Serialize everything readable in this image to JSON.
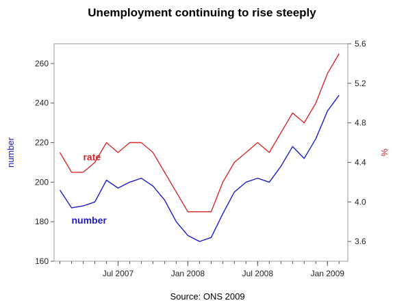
{
  "chart_data": {
    "type": "line",
    "title": "Unemployment continuing to rise steeply",
    "source": "Source: ONS 2009",
    "x": [
      "2007-02",
      "2007-03",
      "2007-04",
      "2007-05",
      "2007-06",
      "2007-07",
      "2007-08",
      "2007-09",
      "2007-10",
      "2007-11",
      "2007-12",
      "2008-01",
      "2008-02",
      "2008-03",
      "2008-04",
      "2008-05",
      "2008-06",
      "2008-07",
      "2008-08",
      "2008-09",
      "2008-10",
      "2008-11",
      "2008-12",
      "2009-01",
      "2009-02",
      "2009-03"
    ],
    "x_ticks": [
      {
        "label": "Jul 2007",
        "at": "2007-07"
      },
      {
        "label": "Jan 2008",
        "at": "2008-01"
      },
      {
        "label": "Jul 2008",
        "at": "2008-07"
      },
      {
        "label": "Jan 2009",
        "at": "2009-01"
      }
    ],
    "x_range": [
      "2007-02",
      "2009-03"
    ],
    "y_left": {
      "label": "number",
      "range": [
        160,
        270
      ],
      "ticks": [
        "160",
        "180",
        "200",
        "220",
        "240",
        "260"
      ],
      "color": "#1a1acc"
    },
    "y_right": {
      "label": "%",
      "range": [
        3.4,
        5.6
      ],
      "ticks": [
        "3.6",
        "4.0",
        "4.4",
        "4.8",
        "5.2",
        "5.6"
      ],
      "color": "#cc2222"
    },
    "series": [
      {
        "name": "number",
        "axis": "left",
        "color": "#1a1acc",
        "values": [
          196,
          187,
          188,
          190,
          201,
          197,
          200,
          202,
          198,
          191,
          180,
          173,
          170,
          172,
          184,
          195,
          200,
          202,
          200,
          208,
          218,
          212,
          222,
          236,
          244,
          null
        ],
        "label_at": {
          "x": "2007-03",
          "y": 179
        }
      },
      {
        "name": "rate",
        "axis": "right",
        "color": "#d42828",
        "values": [
          4.5,
          4.3,
          4.3,
          4.4,
          4.6,
          4.5,
          4.6,
          4.6,
          4.5,
          4.3,
          4.1,
          3.9,
          3.9,
          3.9,
          4.2,
          4.4,
          4.5,
          4.6,
          4.5,
          4.7,
          4.9,
          4.8,
          5.0,
          5.3,
          5.5,
          null
        ],
        "label_at": {
          "x": "2007-04",
          "y": 4.42
        }
      }
    ],
    "grid": false,
    "legend": "none"
  }
}
